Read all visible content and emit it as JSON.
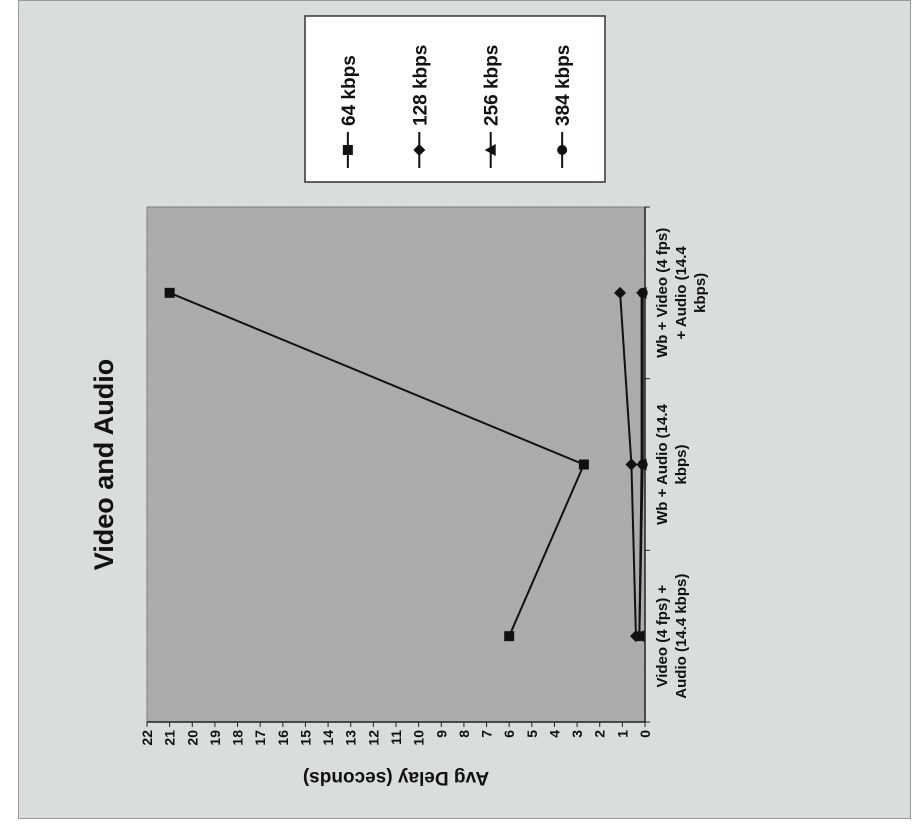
{
  "chart_data": {
    "type": "line",
    "title": "Video and Audio",
    "ylabel": "Avg Delay (seconds)",
    "xlabel": "",
    "ylim": [
      0,
      22
    ],
    "yticks": [
      0,
      1,
      2,
      3,
      4,
      5,
      6,
      7,
      8,
      9,
      10,
      11,
      12,
      13,
      14,
      15,
      16,
      17,
      18,
      19,
      20,
      21,
      22
    ],
    "categories": [
      [
        "Video (4 fps) +",
        "Audio (14.4 kbps)"
      ],
      [
        "Wb + Audio (14.4",
        "kbps)"
      ],
      [
        "Wb + Video (4 fps)",
        "+ Audio (14.4",
        "kbps)"
      ]
    ],
    "series": [
      {
        "name": "64 kbps",
        "marker": "square",
        "values": [
          6.0,
          2.7,
          21.0
        ]
      },
      {
        "name": "128 kbps",
        "marker": "diamond",
        "values": [
          0.4,
          0.6,
          1.1
        ]
      },
      {
        "name": "256 kbps",
        "marker": "triangle",
        "values": [
          0.25,
          0.15,
          0.15
        ]
      },
      {
        "name": "384 kbps",
        "marker": "circle",
        "values": [
          0.25,
          0.1,
          0.1
        ]
      }
    ],
    "grid": false,
    "legend_position": "top-right",
    "rotation": "chart rotated 90 degrees counter-clockwise",
    "colors": {
      "plot_area": "#a9abab",
      "line": "#111111",
      "frame": "#dadddd"
    }
  }
}
